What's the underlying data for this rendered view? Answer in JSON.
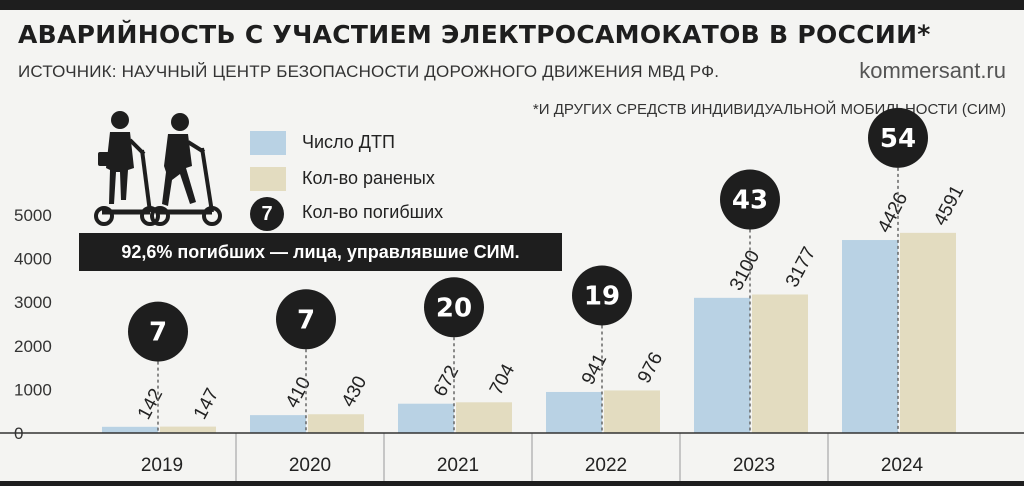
{
  "title": "АВАРИЙНОСТЬ С УЧАСТИЕМ ЭЛЕКТРОСАМОКАТОВ В РОССИИ*",
  "source": "ИСТОЧНИК: НАУЧНЫЙ ЦЕНТР БЕЗОПАСНОСТИ ДОРОЖНОГО ДВИЖЕНИЯ МВД РФ.",
  "site": "kommersant.ru",
  "footnote": "*И ДРУГИХ СРЕДСТВ ИНДИВИДУАЛЬНОЙ МОБИЛЬНОСТИ (СИМ)",
  "note": "92,6% погибших — лица, управлявшие СИМ.",
  "legend": [
    {
      "label": "Число ДТП",
      "color": "#b9d2e4"
    },
    {
      "label": "Кол-во раненых",
      "color": "#e3dcc0"
    },
    {
      "label": "Кол-во погибших",
      "marker": "7",
      "color": "#1e1e1e"
    }
  ],
  "icons": {
    "illustration": "electric-scooter-riders-icon"
  },
  "colors": {
    "accidents": "#b9d2e4",
    "injured": "#e3dcc0",
    "deaths": "#1e1e1e"
  },
  "chart_data": {
    "type": "bar",
    "categories": [
      "2019",
      "2020",
      "2021",
      "2022",
      "2023",
      "2024"
    ],
    "series": [
      {
        "name": "Число ДТП",
        "values": [
          142,
          410,
          672,
          941,
          3100,
          4426
        ]
      },
      {
        "name": "Кол-во раненых",
        "values": [
          147,
          430,
          704,
          976,
          3177,
          4591
        ]
      },
      {
        "name": "Кол-во погибших",
        "values": [
          7,
          7,
          20,
          19,
          43,
          54
        ]
      }
    ],
    "yticks": [
      "0",
      "1000",
      "2000",
      "3000",
      "4000",
      "5000"
    ],
    "ylim": [
      0,
      5000
    ]
  }
}
